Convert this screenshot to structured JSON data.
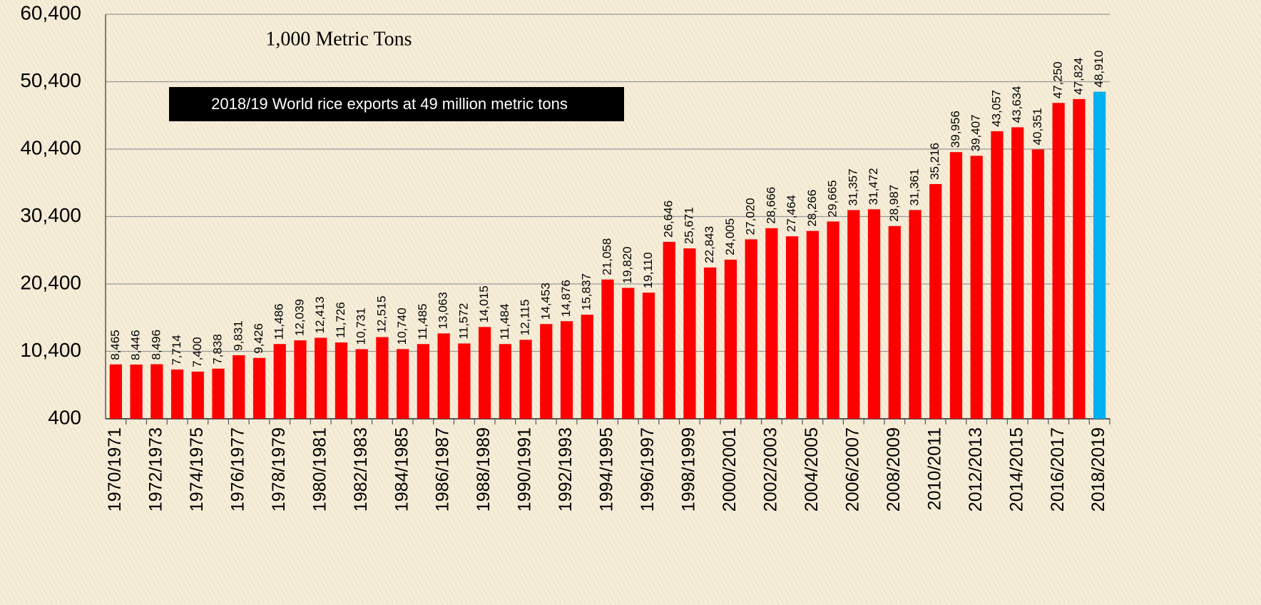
{
  "chart_data": {
    "type": "bar",
    "annotation": "1,000 Metric Tons",
    "callout": "2018/19 World rice exports at 49 million metric tons",
    "categories": [
      "1970/1971",
      null,
      "1972/1973",
      null,
      "1974/1975",
      null,
      "1976/1977",
      null,
      "1978/1979",
      null,
      "1980/1981",
      null,
      "1982/1983",
      null,
      "1984/1985",
      null,
      "1986/1987",
      null,
      "1988/1989",
      null,
      "1990/1991",
      null,
      "1992/1993",
      null,
      "1994/1995",
      null,
      "1996/1997",
      null,
      "1998/1999",
      null,
      "2000/2001",
      null,
      "2002/2003",
      null,
      "2004/2005",
      null,
      "2006/2007",
      null,
      "2008/2009",
      null,
      "2010/2011",
      null,
      "2012/2013",
      null,
      "2014/2015",
      null,
      "2016/2017",
      null,
      "2018/2019"
    ],
    "values": [
      8465,
      8446,
      8496,
      7714,
      7400,
      7838,
      9831,
      9426,
      11486,
      12039,
      12413,
      11726,
      10731,
      12515,
      10740,
      11485,
      13063,
      11572,
      14015,
      11484,
      12115,
      14453,
      14876,
      15837,
      21058,
      19820,
      19110,
      26646,
      25671,
      22843,
      24005,
      27020,
      28666,
      27464,
      28266,
      29665,
      31357,
      31472,
      28987,
      31361,
      35216,
      39956,
      39407,
      43057,
      43634,
      40351,
      47250,
      47824,
      48910
    ],
    "value_labels": [
      "8,465",
      "8,446",
      "8,496",
      "7,714",
      "7,400",
      "7,838",
      "9,831",
      "9,426",
      "11,486",
      "12,039",
      "12,413",
      "11,726",
      "10,731",
      "12,515",
      "10,740",
      "11,485",
      "13,063",
      "11,572",
      "14,015",
      "11,484",
      "12,115",
      "14,453",
      "14,876",
      "15,837",
      "21,058",
      "19,820",
      "19,110",
      "26,646",
      "25,671",
      "22,843",
      "24,005",
      "27,020",
      "28,666",
      "27,464",
      "28,266",
      "29,665",
      "31,357",
      "31,472",
      "28,987",
      "31,361",
      "35,216",
      "39,956",
      "39,407",
      "43,057",
      "43,634",
      "40,351",
      "47,250",
      "47,824",
      "48,910"
    ],
    "colors": [
      "#ff0000",
      "#ff0000",
      "#ff0000",
      "#ff0000",
      "#ff0000",
      "#ff0000",
      "#ff0000",
      "#ff0000",
      "#ff0000",
      "#ff0000",
      "#ff0000",
      "#ff0000",
      "#ff0000",
      "#ff0000",
      "#ff0000",
      "#ff0000",
      "#ff0000",
      "#ff0000",
      "#ff0000",
      "#ff0000",
      "#ff0000",
      "#ff0000",
      "#ff0000",
      "#ff0000",
      "#ff0000",
      "#ff0000",
      "#ff0000",
      "#ff0000",
      "#ff0000",
      "#ff0000",
      "#ff0000",
      "#ff0000",
      "#ff0000",
      "#ff0000",
      "#ff0000",
      "#ff0000",
      "#ff0000",
      "#ff0000",
      "#ff0000",
      "#ff0000",
      "#ff0000",
      "#ff0000",
      "#ff0000",
      "#ff0000",
      "#ff0000",
      "#ff0000",
      "#ff0000",
      "#ff0000",
      "#00b0f0"
    ],
    "ylim": [
      400,
      60400
    ],
    "yticks": [
      400,
      {
        "value": 10400,
        "label": "10,400"
      },
      {
        "value": 20400,
        "label": "20,400"
      },
      {
        "value": 30400,
        "label": "30,400"
      },
      {
        "value": 40400,
        "label": "40,400"
      },
      {
        "value": 50400,
        "label": "50,400"
      },
      {
        "value": 60400,
        "label": "60,400"
      }
    ],
    "grid": true
  }
}
